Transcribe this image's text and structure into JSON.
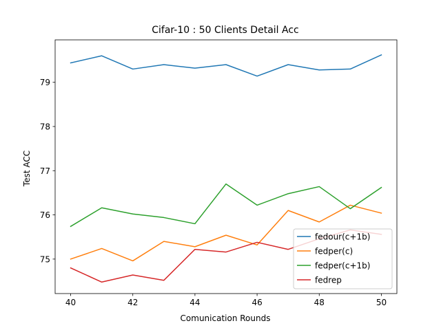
{
  "chart_data": {
    "type": "line",
    "title": "Cifar-10 : 50 Clients Detail Acc",
    "xlabel": "Comunication Rounds",
    "ylabel": "Test ACC",
    "x": [
      40,
      41,
      42,
      43,
      44,
      45,
      46,
      47,
      48,
      49,
      50
    ],
    "xlim": [
      39.5,
      50.5
    ],
    "ylim": [
      74.22,
      78.02
    ],
    "xticks": [
      40,
      42,
      44,
      46,
      48,
      50
    ],
    "yticks": [
      75,
      76,
      77,
      78,
      79
    ],
    "ylim_full": [
      74.22,
      79.96
    ],
    "grid": false,
    "legend_position": "lower-right",
    "series": [
      {
        "name": "fedour(c+1b)",
        "color": "#1f77b4",
        "values": [
          79.44,
          79.6,
          79.3,
          79.4,
          79.32,
          79.4,
          79.14,
          79.4,
          79.28,
          79.3,
          79.62
        ]
      },
      {
        "name": "fedper(c)",
        "color": "#ff7f0e",
        "values": [
          75.0,
          75.24,
          74.96,
          75.4,
          75.28,
          75.54,
          75.32,
          76.1,
          75.84,
          76.22,
          76.04
        ]
      },
      {
        "name": "fedper(c+1b)",
        "color": "#2ca02c",
        "values": [
          75.74,
          76.16,
          76.02,
          75.94,
          75.8,
          76.7,
          76.22,
          76.48,
          76.64,
          76.14,
          76.62
        ]
      },
      {
        "name": "fedrep",
        "color": "#d62728",
        "values": [
          74.8,
          74.48,
          74.64,
          74.52,
          75.22,
          75.16,
          75.38,
          75.22,
          75.46,
          75.66,
          75.56
        ]
      }
    ]
  }
}
